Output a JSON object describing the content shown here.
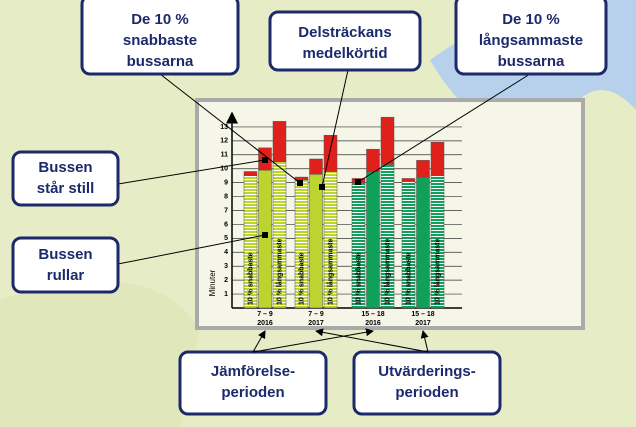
{
  "chart_data": {
    "type": "bar",
    "y_label": "Minuter",
    "ylim": [
      0,
      14
    ],
    "yticks": [
      1,
      2,
      3,
      4,
      5,
      6,
      7,
      8,
      9,
      10,
      11,
      12,
      13
    ],
    "categories": [
      "7 – 9",
      "7 – 9",
      "15 – 18",
      "15 – 18"
    ],
    "category_years": [
      "2016",
      "2017",
      "2016",
      "2017"
    ],
    "category_colors": [
      "#bcd42e",
      "#bcd42e",
      "#10a05a",
      "#10a05a"
    ],
    "standing_color": "#e0201b",
    "segments": {
      "moving": [
        "Bussen",
        "rullar"
      ],
      "standing": [
        "Bussen",
        "står still"
      ]
    },
    "kinds": [
      {
        "name": [
          "De 10 %",
          "snabbaste",
          "bussarna"
        ],
        "bar_label": "10 % snabbaste",
        "striped": true,
        "moving": [
          9.5,
          9.2,
          9.0,
          9.1
        ],
        "standing": [
          0.3,
          0.2,
          0.3,
          0.2
        ]
      },
      {
        "name": [
          "Delsträckans",
          "medelkörtid"
        ],
        "striped": false,
        "moving": [
          9.9,
          9.6,
          9.8,
          9.4
        ],
        "standing": [
          1.6,
          1.1,
          1.6,
          1.2
        ]
      },
      {
        "name": [
          "De 10 %",
          "långsammaste",
          "bussarna"
        ],
        "bar_label": "10 % långsammaste",
        "striped": true,
        "moving": [
          10.5,
          9.8,
          10.3,
          9.5
        ],
        "standing": [
          2.9,
          2.6,
          3.4,
          2.4
        ]
      }
    ],
    "periods": [
      {
        "name": [
          "Jämförelse-",
          "perioden"
        ],
        "categories": [
          0,
          2
        ]
      },
      {
        "name": [
          "Utvärderings-",
          "perioden"
        ],
        "categories": [
          1,
          3
        ]
      }
    ]
  }
}
